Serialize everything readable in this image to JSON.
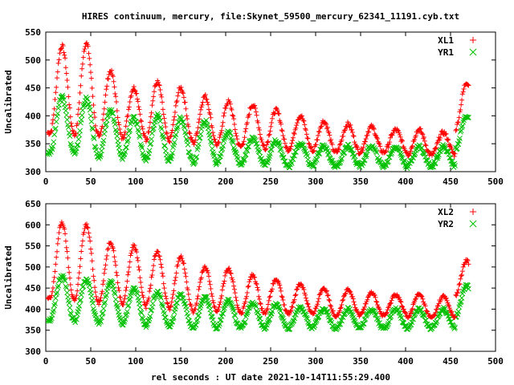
{
  "title": "HIRES continuum, mercury, file:Skynet_59500_mercury_62341_11191.cyb.txt",
  "xlabel": "rel seconds : UT date 2021-10-14T11:55:29.400",
  "chart_data": [
    {
      "type": "scatter",
      "ylabel": "Uncalibrated",
      "xlim": [
        0,
        500
      ],
      "ylim": [
        300,
        550
      ],
      "xticks": [
        0,
        50,
        100,
        150,
        200,
        250,
        300,
        350,
        400,
        450,
        500
      ],
      "yticks": [
        300,
        350,
        400,
        450,
        500,
        550
      ],
      "legend_position": "top-right",
      "series": [
        {
          "name": "XL1",
          "marker": "+",
          "color": "#ff0000",
          "model": {
            "x_end": 470,
            "period": 26.5,
            "peaks_x": [
              18,
              45,
              72,
              98,
              124,
              150,
              177,
              203,
              230,
              256,
              283,
              309,
              336,
              362,
              389,
              415,
              442,
              468
            ],
            "peaks_y": [
              525,
              530,
              480,
              450,
              460,
              450,
              435,
              425,
              420,
              410,
              400,
              390,
              385,
              380,
              375,
              375,
              370,
              460
            ],
            "troughs_y": [
              370,
              365,
              360,
              360,
              355,
              355,
              350,
              345,
              345,
              340,
              340,
              335,
              335,
              335,
              335,
              330,
              330,
              375
            ]
          }
        },
        {
          "name": "YR1",
          "marker": "x",
          "color": "#00c000",
          "model": {
            "x_end": 470,
            "period": 26.5,
            "peaks_x": [
              18,
              45,
              72,
              98,
              124,
              150,
              177,
              203,
              230,
              256,
              283,
              309,
              336,
              362,
              389,
              415,
              442,
              468
            ],
            "peaks_y": [
              435,
              430,
              410,
              395,
              400,
              395,
              390,
              370,
              360,
              355,
              350,
              345,
              345,
              345,
              345,
              345,
              345,
              400
            ],
            "troughs_y": [
              335,
              330,
              325,
              325,
              320,
              320,
              315,
              315,
              315,
              310,
              310,
              310,
              310,
              310,
              310,
              310,
              310,
              340
            ]
          }
        }
      ]
    },
    {
      "type": "scatter",
      "ylabel": "Uncalibrated",
      "xlim": [
        0,
        500
      ],
      "ylim": [
        300,
        650
      ],
      "xticks": [
        0,
        50,
        100,
        150,
        200,
        250,
        300,
        350,
        400,
        450,
        500
      ],
      "yticks": [
        300,
        350,
        400,
        450,
        500,
        550,
        600,
        650
      ],
      "legend_position": "top-right",
      "series": [
        {
          "name": "XL2",
          "marker": "+",
          "color": "#ff0000",
          "model": {
            "x_end": 470,
            "period": 26.5,
            "peaks_x": [
              18,
              45,
              72,
              98,
              124,
              150,
              177,
              203,
              230,
              256,
              283,
              309,
              336,
              362,
              389,
              415,
              442,
              468
            ],
            "peaks_y": [
              605,
              600,
              560,
              550,
              535,
              525,
              500,
              495,
              480,
              470,
              460,
              450,
              445,
              440,
              435,
              435,
              430,
              515
            ],
            "troughs_y": [
              425,
              420,
              415,
              410,
              405,
              400,
              395,
              395,
              390,
              390,
              390,
              385,
              385,
              385,
              385,
              380,
              380,
              430
            ]
          }
        },
        {
          "name": "YR2",
          "marker": "x",
          "color": "#00c000",
          "model": {
            "x_end": 470,
            "period": 26.5,
            "peaks_x": [
              18,
              45,
              72,
              98,
              124,
              150,
              177,
              203,
              230,
              256,
              283,
              309,
              336,
              362,
              389,
              415,
              442,
              468
            ],
            "peaks_y": [
              480,
              470,
              465,
              450,
              440,
              435,
              430,
              420,
              415,
              410,
              405,
              400,
              400,
              400,
              400,
              400,
              400,
              455
            ],
            "troughs_y": [
              375,
              370,
              365,
              360,
              360,
              355,
              355,
              355,
              355,
              355,
              355,
              355,
              355,
              355,
              355,
              355,
              355,
              380
            ]
          }
        }
      ]
    }
  ]
}
